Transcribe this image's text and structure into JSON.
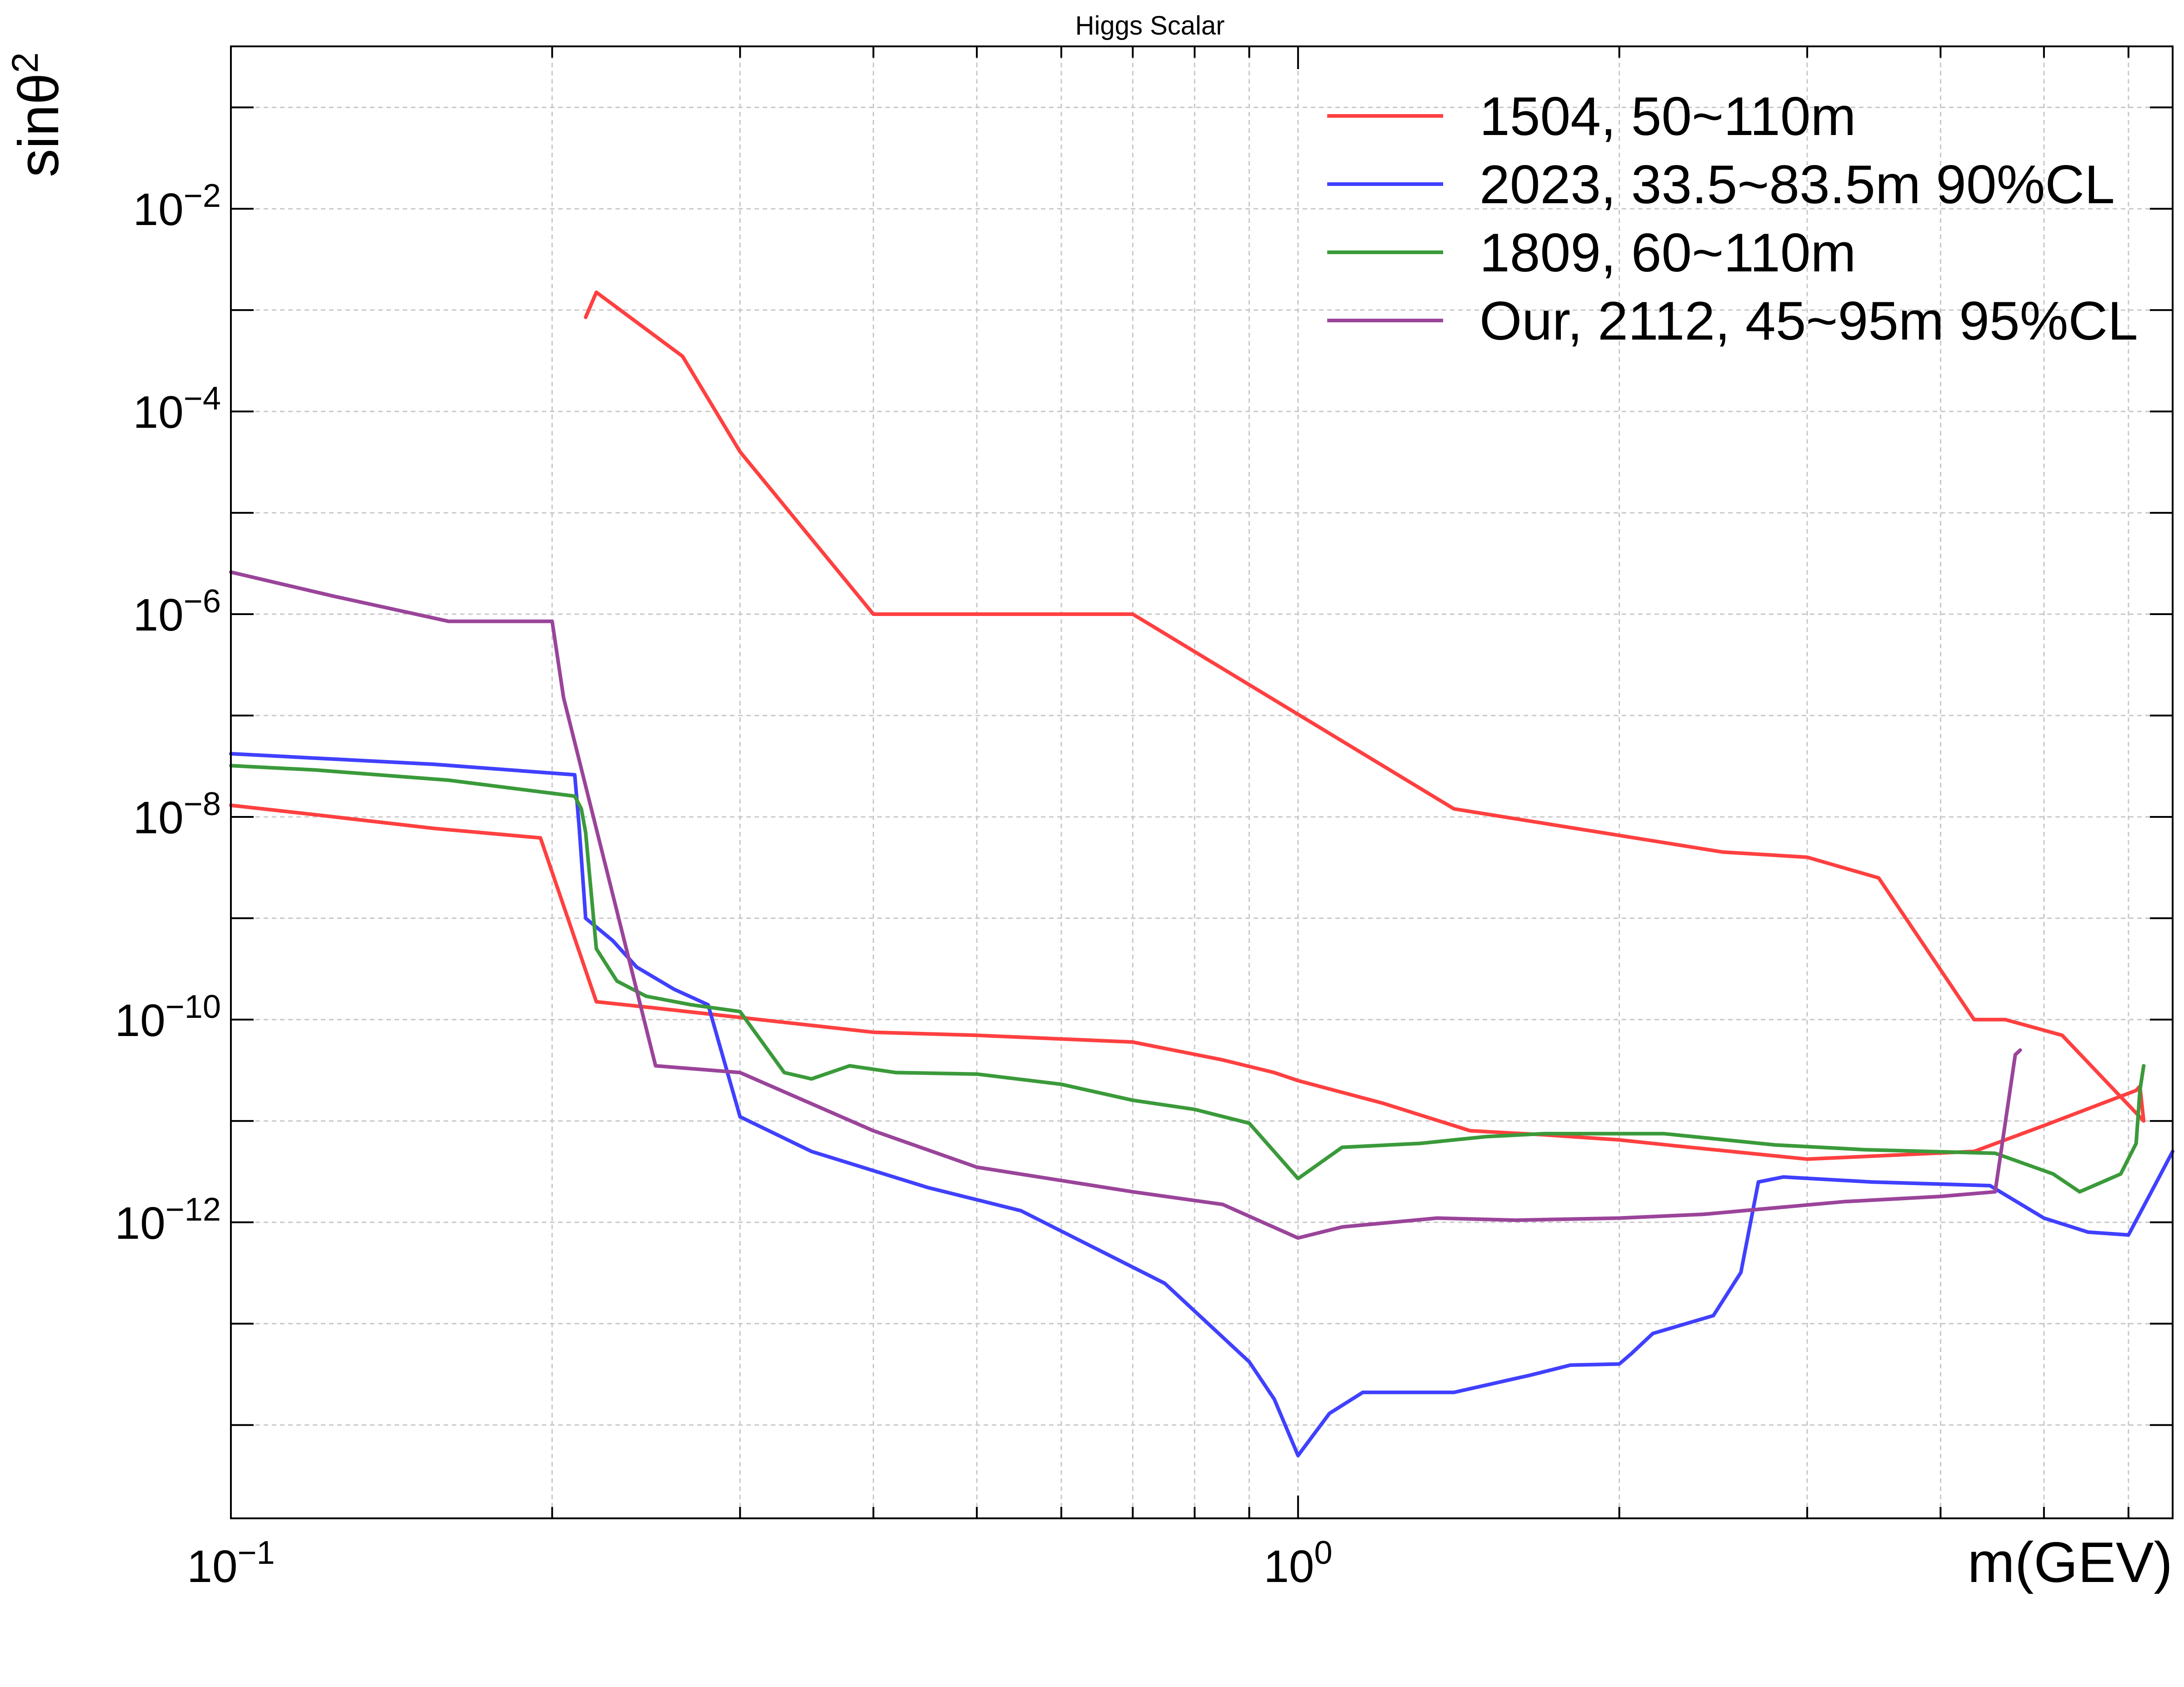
{
  "chart_data": {
    "type": "line",
    "title": "Higgs Scalar",
    "xlabel": "m(GEV)",
    "ylabel_text": "sinθ",
    "ylabel_sup": "2",
    "xscale": "log",
    "yscale": "log",
    "xlim": [
      0.1,
      6.6
    ],
    "ylim": [
      1.2e-15,
      0.4
    ],
    "grid": true,
    "legend_position": "top-right",
    "x_ticks": [
      {
        "value": 0.1,
        "base": "10",
        "exp": "−1"
      },
      {
        "value": 1,
        "base": "10",
        "exp": "0"
      }
    ],
    "y_ticks": [
      {
        "value": 0.01,
        "base": "10",
        "exp": "−2"
      },
      {
        "value": 0.0001,
        "base": "10",
        "exp": "−4"
      },
      {
        "value": 1e-06,
        "base": "10",
        "exp": "−6"
      },
      {
        "value": 1e-08,
        "base": "10",
        "exp": "−8"
      },
      {
        "value": 1e-10,
        "base": "10",
        "exp": "−10"
      },
      {
        "value": 1e-12,
        "base": "10",
        "exp": "−12"
      }
    ],
    "series": [
      {
        "name": "1504, 50~110m",
        "color": "#ff4040",
        "x": [
          0.1,
          0.12,
          0.155,
          0.195,
          0.22,
          0.25,
          0.3,
          0.4,
          0.5,
          0.7,
          0.85,
          0.95,
          1.0,
          1.2,
          1.45,
          1.7,
          2.0,
          2.25,
          3.0,
          4.3,
          5.0,
          6.1,
          6.15,
          6.2,
          5.2,
          4.6,
          4.3,
          3.5,
          3.0,
          2.5,
          1.4,
          0.7,
          0.4,
          0.3,
          0.265,
          0.22,
          0.215
        ],
        "y": [
          1.3e-08,
          1.05e-08,
          7.7e-09,
          6.2e-09,
          1.5e-10,
          1.3e-10,
          1.05e-10,
          7.5e-11,
          7e-11,
          6e-11,
          4e-11,
          3e-11,
          2.5e-11,
          1.5e-11,
          8e-12,
          7.3e-12,
          6.5e-12,
          5.7e-12,
          4.2e-12,
          5e-12,
          9e-12,
          2e-11,
          2.2e-11,
          1e-11,
          7e-11,
          1e-10,
          1e-10,
          2.5e-09,
          4e-09,
          4.5e-09,
          1.2e-08,
          1e-06,
          1e-06,
          4e-05,
          0.00035,
          0.0015,
          0.00085
        ]
      },
      {
        "name": "2023, 33.5~83.5m 90%CL",
        "color": "#4040ff",
        "x": [
          0.1,
          0.12,
          0.155,
          0.21,
          0.212,
          0.215,
          0.228,
          0.24,
          0.26,
          0.28,
          0.3,
          0.35,
          0.45,
          0.55,
          0.75,
          0.9,
          0.95,
          1.0,
          1.07,
          1.15,
          1.4,
          1.65,
          1.8,
          2.0,
          2.05,
          2.15,
          2.45,
          2.6,
          2.7,
          2.85,
          3.45,
          4.45,
          5.0,
          5.5,
          6.0,
          6.4,
          6.6
        ],
        "y": [
          4.2e-08,
          3.8e-08,
          3.3e-08,
          2.6e-08,
          8e-09,
          1e-09,
          6e-10,
          3.3e-10,
          2e-10,
          1.4e-10,
          1.1e-11,
          5e-12,
          2.2e-12,
          1.3e-12,
          2.5e-13,
          4.2e-14,
          1.8e-14,
          5e-15,
          1.3e-14,
          2.1e-14,
          2.1e-14,
          3.1e-14,
          3.9e-14,
          4e-14,
          5e-14,
          8e-14,
          1.2e-13,
          3.2e-13,
          2.5e-12,
          2.8e-12,
          2.5e-12,
          2.3e-12,
          1.1e-12,
          8e-13,
          7.5e-13,
          2.7e-12,
          5e-12
        ]
      },
      {
        "name": "1809, 60~110m",
        "color": "#3a9a3a",
        "x": [
          0.1,
          0.12,
          0.16,
          0.21,
          0.213,
          0.215,
          0.22,
          0.23,
          0.245,
          0.27,
          0.3,
          0.33,
          0.35,
          0.38,
          0.42,
          0.5,
          0.6,
          0.7,
          0.8,
          0.9,
          1.0,
          1.1,
          1.3,
          1.5,
          1.7,
          2.0,
          2.2,
          2.8,
          3.4,
          4.5,
          5.1,
          5.4,
          5.9,
          6.1,
          6.15,
          6.2
        ],
        "y": [
          3.2e-08,
          2.9e-08,
          2.3e-08,
          1.6e-08,
          1.2e-08,
          7e-09,
          5e-10,
          2.4e-10,
          1.7e-10,
          1.4e-10,
          1.2e-10,
          3e-11,
          2.6e-11,
          3.5e-11,
          3e-11,
          2.9e-11,
          2.3e-11,
          1.6e-11,
          1.3e-11,
          9.5e-12,
          2.7e-12,
          5.5e-12,
          6e-12,
          7e-12,
          7.5e-12,
          7.5e-12,
          7.5e-12,
          5.8e-12,
          5.2e-12,
          4.8e-12,
          3e-12,
          2e-12,
          3e-12,
          6e-12,
          2e-11,
          3.5e-11
        ]
      },
      {
        "name": "Our, 2112, 45~95m 95%CL",
        "color": "#9a449a",
        "x": [
          0.1,
          0.125,
          0.16,
          0.2,
          0.205,
          0.25,
          0.3,
          0.4,
          0.5,
          0.7,
          0.85,
          1.0,
          1.1,
          1.35,
          1.6,
          2.0,
          2.4,
          3.25,
          4.0,
          4.5,
          4.7,
          4.75
        ],
        "y": [
          2.6e-06,
          1.5e-06,
          8.5e-07,
          8.5e-07,
          1.5e-07,
          3.5e-11,
          3e-11,
          8e-12,
          3.5e-12,
          2e-12,
          1.5e-12,
          7e-13,
          9e-13,
          1.1e-12,
          1.05e-12,
          1.1e-12,
          1.2e-12,
          1.6e-12,
          1.8e-12,
          2e-12,
          4.5e-11,
          5e-11
        ]
      }
    ]
  }
}
